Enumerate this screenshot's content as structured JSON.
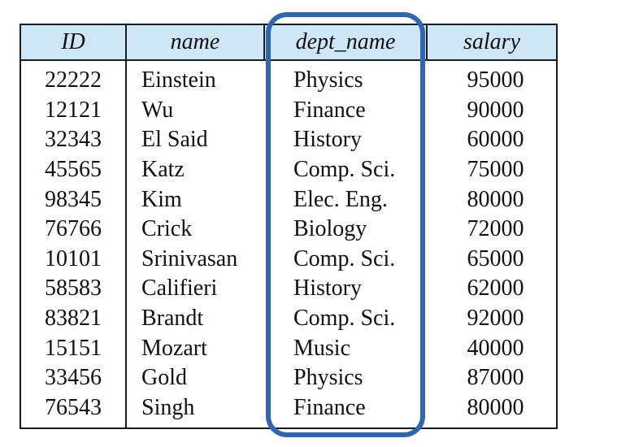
{
  "table": {
    "columns": [
      "ID",
      "name",
      "dept_name",
      "salary"
    ],
    "rows": [
      [
        "22222",
        "Einstein",
        "Physics",
        "95000"
      ],
      [
        "12121",
        "Wu",
        "Finance",
        "90000"
      ],
      [
        "32343",
        "El Said",
        "History",
        "60000"
      ],
      [
        "45565",
        "Katz",
        "Comp. Sci.",
        "75000"
      ],
      [
        "98345",
        "Kim",
        "Elec. Eng.",
        "80000"
      ],
      [
        "76766",
        "Crick",
        "Biology",
        "72000"
      ],
      [
        "10101",
        "Srinivasan",
        "Comp. Sci.",
        "65000"
      ],
      [
        "58583",
        "Califieri",
        "History",
        "62000"
      ],
      [
        "83821",
        "Brandt",
        "Comp. Sci.",
        "92000"
      ],
      [
        "15151",
        "Mozart",
        "Music",
        "40000"
      ],
      [
        "33456",
        "Gold",
        "Physics",
        "87000"
      ],
      [
        "76543",
        "Singh",
        "Finance",
        "80000"
      ]
    ]
  },
  "colors": {
    "header_bg": "#cfe6f7",
    "highlight_border": "#2f66ad",
    "rule": "#1b1b1b"
  },
  "highlight": {
    "column": "dept_name"
  }
}
